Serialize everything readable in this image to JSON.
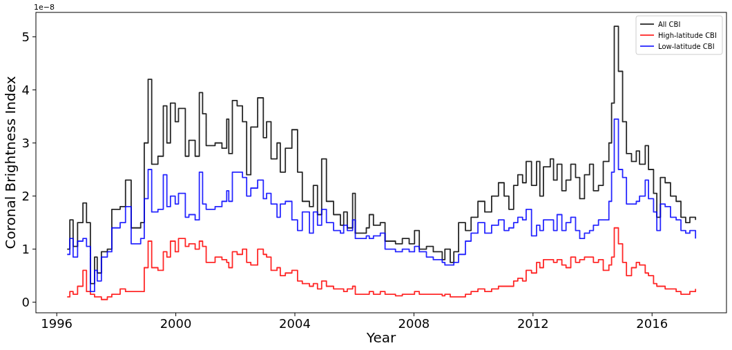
{
  "chart_data": {
    "type": "step",
    "xlabel": "Year",
    "ylabel": "Coronal Brightness Index",
    "annotations": [
      "1e−8"
    ],
    "x": [
      1996.35,
      1996.44,
      1996.55,
      1996.7,
      1996.88,
      1997.0,
      1997.13,
      1997.27,
      1997.36,
      1997.5,
      1997.7,
      1997.85,
      1998.13,
      1998.31,
      1998.5,
      1998.82,
      1998.94,
      1999.07,
      1999.19,
      1999.4,
      1999.58,
      1999.7,
      1999.82,
      1999.98,
      2000.09,
      2000.32,
      2000.44,
      2000.65,
      2000.79,
      2000.9,
      2001.02,
      2001.32,
      2001.55,
      2001.71,
      2001.78,
      2001.9,
      2002.06,
      2002.24,
      2002.38,
      2002.52,
      2002.75,
      2002.94,
      2003.05,
      2003.2,
      2003.4,
      2003.51,
      2003.68,
      2003.9,
      2004.09,
      2004.25,
      2004.49,
      2004.62,
      2004.76,
      2004.9,
      2005.06,
      2005.3,
      2005.53,
      2005.64,
      2005.76,
      2005.94,
      2006.03,
      2006.4,
      2006.5,
      2006.64,
      2006.87,
      2007.03,
      2007.38,
      2007.61,
      2007.84,
      2008.02,
      2008.18,
      2008.42,
      2008.65,
      2008.95,
      2009.04,
      2009.22,
      2009.34,
      2009.5,
      2009.73,
      2009.92,
      2010.15,
      2010.38,
      2010.61,
      2010.84,
      2011.03,
      2011.19,
      2011.35,
      2011.49,
      2011.65,
      2011.77,
      2011.95,
      2012.12,
      2012.23,
      2012.35,
      2012.58,
      2012.69,
      2012.81,
      2012.97,
      2013.11,
      2013.27,
      2013.43,
      2013.57,
      2013.73,
      2013.9,
      2014.03,
      2014.2,
      2014.36,
      2014.55,
      2014.64,
      2014.73,
      2014.87,
      2015.01,
      2015.14,
      2015.31,
      2015.47,
      2015.58,
      2015.77,
      2015.88,
      2016.05,
      2016.16,
      2016.28,
      2016.44,
      2016.62,
      2016.81,
      2016.97,
      2017.13,
      2017.27,
      2017.46
    ],
    "series": [
      {
        "name": "All CBI",
        "color": "#000000",
        "values": [
          1.0,
          1.55,
          1.05,
          1.5,
          1.87,
          1.5,
          0.35,
          0.85,
          0.55,
          0.95,
          1.0,
          1.75,
          1.8,
          2.3,
          1.4,
          1.5,
          3.0,
          4.2,
          2.6,
          2.75,
          3.7,
          3.0,
          3.75,
          3.4,
          3.65,
          2.75,
          3.05,
          2.75,
          3.95,
          3.55,
          2.95,
          3.0,
          2.9,
          3.45,
          2.8,
          3.8,
          3.7,
          3.4,
          2.4,
          3.3,
          3.85,
          3.1,
          3.4,
          2.7,
          3.0,
          2.45,
          2.9,
          3.25,
          2.45,
          1.9,
          1.8,
          2.2,
          1.65,
          2.7,
          1.9,
          1.65,
          1.45,
          1.7,
          1.4,
          2.05,
          1.3,
          1.4,
          1.65,
          1.45,
          1.5,
          1.15,
          1.1,
          1.2,
          1.1,
          1.35,
          1.0,
          1.05,
          0.95,
          0.8,
          1.0,
          0.75,
          0.95,
          1.5,
          1.35,
          1.6,
          1.9,
          1.7,
          2.0,
          2.25,
          2.0,
          1.75,
          2.2,
          2.4,
          2.25,
          2.65,
          2.2,
          2.65,
          2.0,
          2.55,
          2.7,
          2.3,
          2.6,
          2.1,
          2.3,
          2.6,
          2.35,
          1.95,
          2.4,
          2.6,
          2.1,
          2.2,
          2.65,
          3.0,
          3.75,
          5.2,
          4.35,
          3.4,
          2.8,
          2.65,
          2.85,
          2.6,
          2.95,
          2.5,
          2.05,
          1.6,
          2.35,
          2.25,
          2.0,
          1.9,
          1.6,
          1.5,
          1.6,
          1.55
        ]
      },
      {
        "name": "High-latitude CBI",
        "color": "#ff0000",
        "values": [
          0.1,
          0.2,
          0.15,
          0.3,
          0.6,
          0.2,
          0.15,
          0.1,
          0.1,
          0.05,
          0.1,
          0.15,
          0.25,
          0.2,
          0.2,
          0.2,
          0.65,
          1.15,
          0.65,
          0.6,
          0.95,
          0.85,
          1.15,
          0.95,
          1.2,
          1.05,
          1.1,
          1.0,
          1.15,
          1.05,
          0.75,
          0.85,
          0.8,
          0.75,
          0.65,
          0.95,
          0.9,
          1.0,
          0.75,
          0.7,
          1.0,
          0.9,
          0.85,
          0.6,
          0.65,
          0.5,
          0.55,
          0.6,
          0.4,
          0.35,
          0.3,
          0.35,
          0.25,
          0.4,
          0.3,
          0.25,
          0.25,
          0.2,
          0.25,
          0.3,
          0.15,
          0.15,
          0.2,
          0.15,
          0.2,
          0.15,
          0.12,
          0.15,
          0.15,
          0.2,
          0.15,
          0.15,
          0.15,
          0.12,
          0.15,
          0.1,
          0.1,
          0.1,
          0.15,
          0.2,
          0.25,
          0.2,
          0.25,
          0.3,
          0.3,
          0.3,
          0.4,
          0.45,
          0.4,
          0.6,
          0.55,
          0.75,
          0.65,
          0.8,
          0.8,
          0.75,
          0.8,
          0.7,
          0.65,
          0.85,
          0.75,
          0.8,
          0.85,
          0.85,
          0.75,
          0.8,
          0.6,
          0.7,
          0.85,
          1.4,
          1.1,
          0.75,
          0.5,
          0.65,
          0.75,
          0.7,
          0.55,
          0.5,
          0.35,
          0.3,
          0.3,
          0.25,
          0.25,
          0.2,
          0.15,
          0.15,
          0.2,
          0.25
        ]
      },
      {
        "name": "Low-latitude CBI",
        "color": "#0000ff",
        "values": [
          0.9,
          1.2,
          0.85,
          1.15,
          1.2,
          1.05,
          0.2,
          0.6,
          0.4,
          0.85,
          0.95,
          1.4,
          1.5,
          1.8,
          1.1,
          1.2,
          1.95,
          2.5,
          1.7,
          1.75,
          2.4,
          1.8,
          2.0,
          1.85,
          2.05,
          1.6,
          1.65,
          1.55,
          2.45,
          1.85,
          1.75,
          1.8,
          1.9,
          2.1,
          1.9,
          2.45,
          2.45,
          2.35,
          2.0,
          2.15,
          2.3,
          1.95,
          2.05,
          1.85,
          1.6,
          1.85,
          1.9,
          1.55,
          1.35,
          1.7,
          1.3,
          1.7,
          1.45,
          1.75,
          1.5,
          1.35,
          1.3,
          1.45,
          1.35,
          1.55,
          1.2,
          1.25,
          1.2,
          1.25,
          1.3,
          1.0,
          0.95,
          1.0,
          0.95,
          1.05,
          0.95,
          0.85,
          0.8,
          0.75,
          0.7,
          0.7,
          0.75,
          0.9,
          1.15,
          1.3,
          1.5,
          1.3,
          1.45,
          1.55,
          1.35,
          1.4,
          1.5,
          1.6,
          1.55,
          1.75,
          1.25,
          1.45,
          1.35,
          1.55,
          1.55,
          1.35,
          1.65,
          1.35,
          1.5,
          1.6,
          1.35,
          1.2,
          1.3,
          1.35,
          1.45,
          1.55,
          1.55,
          1.9,
          2.45,
          3.45,
          2.5,
          2.35,
          1.85,
          1.85,
          1.9,
          2.0,
          2.3,
          1.95,
          1.7,
          1.35,
          1.85,
          1.8,
          1.6,
          1.55,
          1.35,
          1.3,
          1.35,
          1.2
        ]
      }
    ],
    "xlim": [
      1995.3,
      2018.5
    ],
    "xticks": [
      1996,
      2000,
      2004,
      2008,
      2012,
      2016
    ],
    "ylim": [
      -0.2,
      5.46
    ],
    "yticks": [
      0,
      1,
      2,
      3,
      4,
      5
    ],
    "legend": "top right",
    "grid": false
  }
}
